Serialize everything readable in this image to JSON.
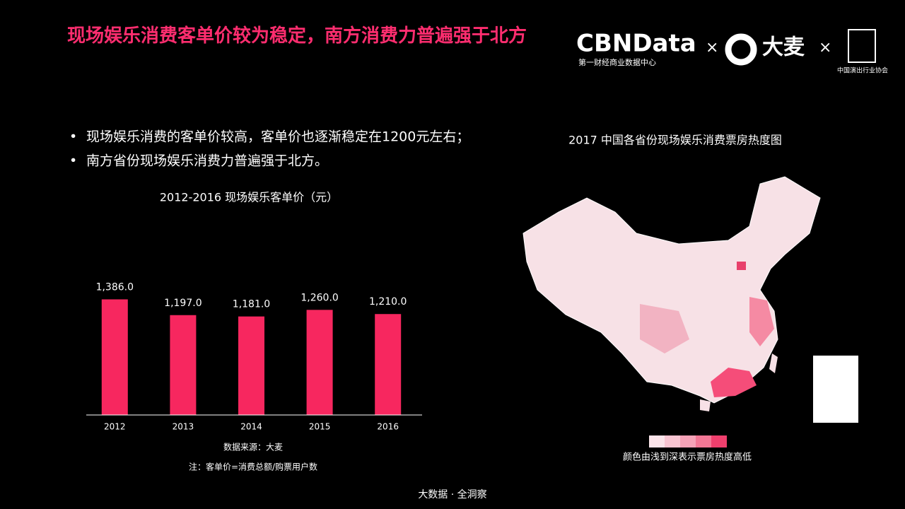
{
  "header": {
    "title": "现场娱乐消费客单价较为稳定，南方消费力普遍强于北方",
    "logos": [
      "CBNData",
      "第一财经商业数据中心",
      "大麦",
      "中国演出行业协会"
    ]
  },
  "bullets": [
    "现场娱乐消费的客单价较高，客单价也逐渐稳定在1200元左右；",
    "南方省份现场娱乐消费力普遍强于北方。"
  ],
  "chart_data": {
    "type": "bar",
    "title": "2012-2016 现场娱乐客单价（元）",
    "categories": [
      "2012",
      "2013",
      "2014",
      "2015",
      "2016"
    ],
    "values": [
      1386.0,
      1197.0,
      1181.0,
      1260.0,
      1210.0
    ],
    "value_labels": [
      "1,386.0",
      "1,197.0",
      "1,181.0",
      "1,260.0",
      "1,210.0"
    ],
    "color": "#f7275f",
    "ylim": [
      0,
      1500
    ]
  },
  "chart_notes": [
    "数据来源：大麦",
    "注：客单价=消费总额/购票用户数"
  ],
  "map": {
    "title": "2017 中国各省份现场娱乐消费票房热度图",
    "legend": "颜色由浅到深表示票房热度高低"
  },
  "footer": "大数据 · 全洞察"
}
